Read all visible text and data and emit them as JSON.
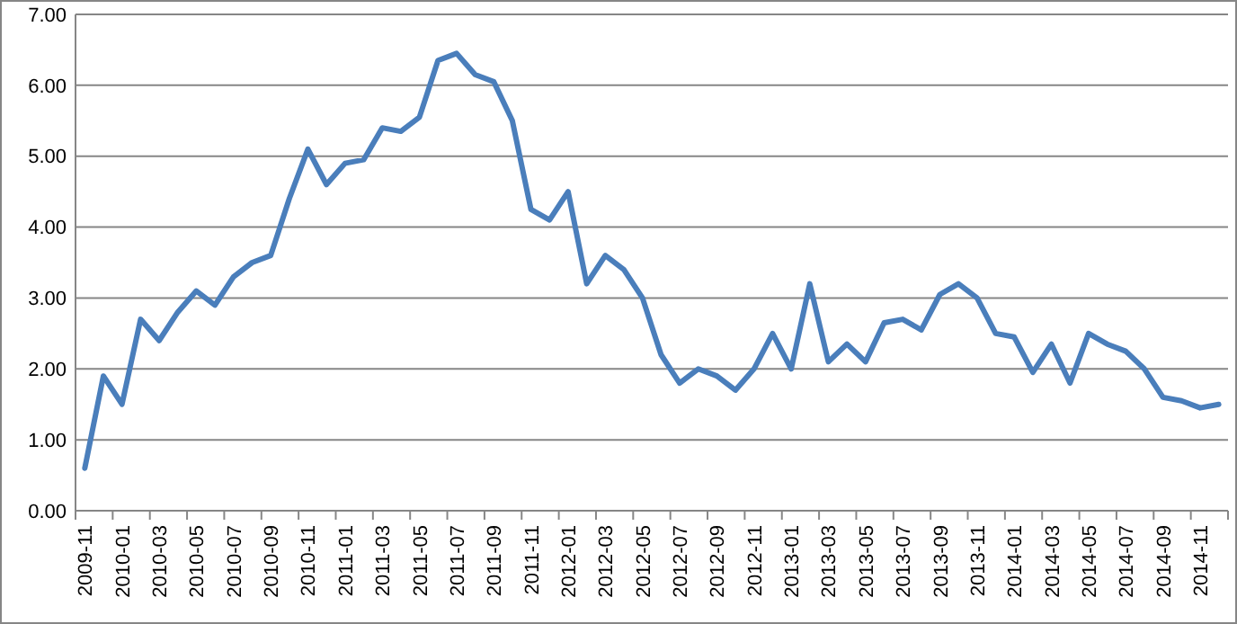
{
  "chart_data": {
    "type": "line",
    "categories": [
      "2009-11",
      null,
      "2010-01",
      null,
      "2010-03",
      null,
      "2010-05",
      null,
      "2010-07",
      null,
      "2010-09",
      null,
      "2010-11",
      null,
      "2011-01",
      null,
      "2011-03",
      null,
      "2011-05",
      null,
      "2011-07",
      null,
      "2011-09",
      null,
      "2011-11",
      null,
      "2012-01",
      null,
      "2012-03",
      null,
      "2012-05",
      null,
      "2012-07",
      null,
      "2012-09",
      null,
      "2012-11",
      null,
      "2013-01",
      null,
      "2013-03",
      null,
      "2013-05",
      null,
      "2013-07",
      null,
      "2013-09",
      null,
      "2013-11",
      null,
      "2014-01",
      null,
      "2014-03",
      null,
      "2014-05",
      null,
      "2014-07",
      null,
      "2014-09",
      null,
      "2014-11",
      null
    ],
    "series": [
      {
        "color": "#4a7ebb",
        "values": [
          0.6,
          1.9,
          1.5,
          2.7,
          2.4,
          2.8,
          3.1,
          2.9,
          3.3,
          3.5,
          3.6,
          4.4,
          5.1,
          4.6,
          4.9,
          4.95,
          5.4,
          5.35,
          5.55,
          6.35,
          6.45,
          6.15,
          6.05,
          5.5,
          4.25,
          4.1,
          4.5,
          3.2,
          3.6,
          3.4,
          3.0,
          2.2,
          1.8,
          2.0,
          1.9,
          1.7,
          2.0,
          2.5,
          2.0,
          3.2,
          2.1,
          2.35,
          2.1,
          2.65,
          2.7,
          2.55,
          3.05,
          3.2,
          3.0,
          2.5,
          2.45,
          1.95,
          2.35,
          1.8,
          2.5,
          2.35,
          2.25,
          2.0,
          1.6,
          1.55,
          1.45,
          1.5
        ]
      }
    ],
    "ylim": [
      0,
      7
    ],
    "yticks": [
      {
        "value": 0,
        "label": "0.00"
      },
      {
        "value": 1,
        "label": "1.00"
      },
      {
        "value": 2,
        "label": "2.00"
      },
      {
        "value": 3,
        "label": "3.00"
      },
      {
        "value": 4,
        "label": "4.00"
      },
      {
        "value": 5,
        "label": "5.00"
      },
      {
        "value": 6,
        "label": "6.00"
      },
      {
        "value": 7,
        "label": "7.00"
      }
    ],
    "grid": "y",
    "marker": "none",
    "line_style": "solid"
  }
}
